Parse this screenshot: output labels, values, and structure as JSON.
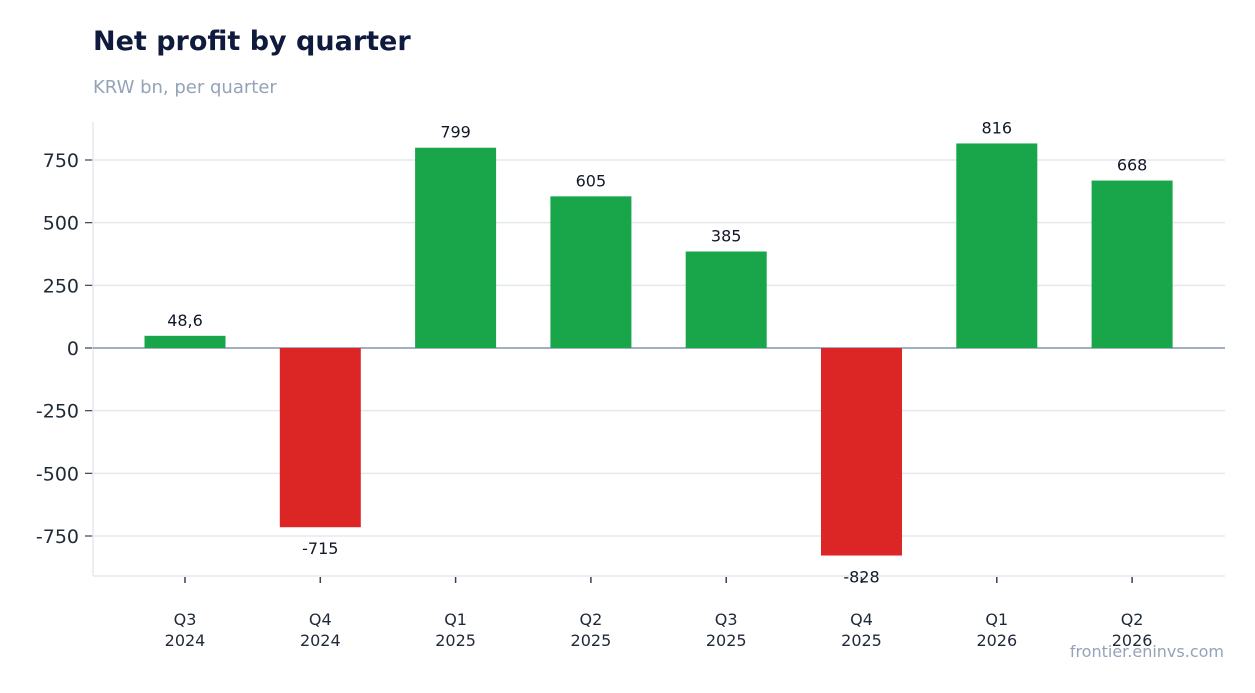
{
  "chart_data": {
    "type": "bar",
    "title": "Net profit by quarter",
    "subtitle": "KRW bn, per quarter",
    "categories": [
      [
        "Q3",
        "2024"
      ],
      [
        "Q4",
        "2024"
      ],
      [
        "Q1",
        "2025"
      ],
      [
        "Q2",
        "2025"
      ],
      [
        "Q3",
        "2025"
      ],
      [
        "Q4",
        "2025"
      ],
      [
        "Q1",
        "2026"
      ],
      [
        "Q2",
        "2026"
      ]
    ],
    "values": [
      48.6,
      -715,
      799,
      605,
      385,
      -828,
      816,
      668
    ],
    "value_labels": [
      "48,6",
      "-715",
      "799",
      "605",
      "385",
      "-828",
      "816",
      "668"
    ],
    "ylim": [
      -910,
      900
    ],
    "yticks": [
      -750,
      -500,
      -250,
      0,
      250,
      500,
      750
    ],
    "grid": true,
    "colors": {
      "positive": "#19a54a",
      "negative": "#dc2626",
      "grid": "#e5e9ef",
      "zero_line": "#94a3b8"
    }
  },
  "source": "frontier.eninvs.com"
}
